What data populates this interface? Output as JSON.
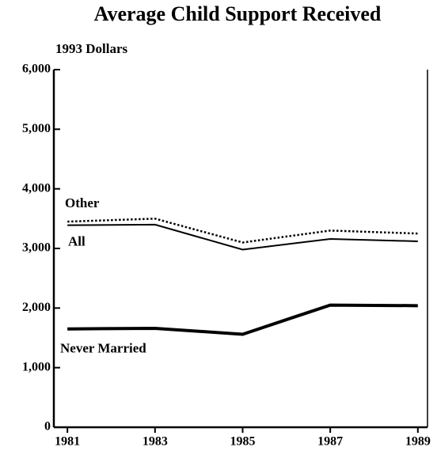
{
  "chart_data": {
    "type": "line",
    "title": "Average Child Support Received",
    "ylabel": "1993 Dollars",
    "x": [
      1981,
      1983,
      1985,
      1987,
      1989
    ],
    "xlim": [
      1980.69,
      1989.22
    ],
    "xticks": [
      1981,
      1983,
      1985,
      1987,
      1989
    ],
    "ylim": [
      0,
      6000
    ],
    "yticks": [
      0,
      {
        "value": 1000,
        "label": "1,000"
      },
      {
        "value": 2000,
        "label": "2,000"
      },
      {
        "value": 3000,
        "label": "3,000"
      },
      {
        "value": 4000,
        "label": "4,000"
      },
      {
        "value": 5000,
        "label": "5,000"
      },
      {
        "value": 6000,
        "label": "6,000"
      }
    ],
    "series": [
      {
        "name": "Other",
        "color": "#000000",
        "dash": "dotted",
        "width": 2.5,
        "values": [
          3450,
          3500,
          3100,
          3300,
          3250
        ]
      },
      {
        "name": "All",
        "color": "#000000",
        "dash": "solid",
        "width": 2,
        "values": [
          3390,
          3400,
          2980,
          3160,
          3120
        ]
      },
      {
        "name": "Never Married",
        "color": "#000000",
        "dash": "solid",
        "width": 4,
        "values": [
          1650,
          1660,
          1560,
          2050,
          2040
        ]
      }
    ]
  }
}
